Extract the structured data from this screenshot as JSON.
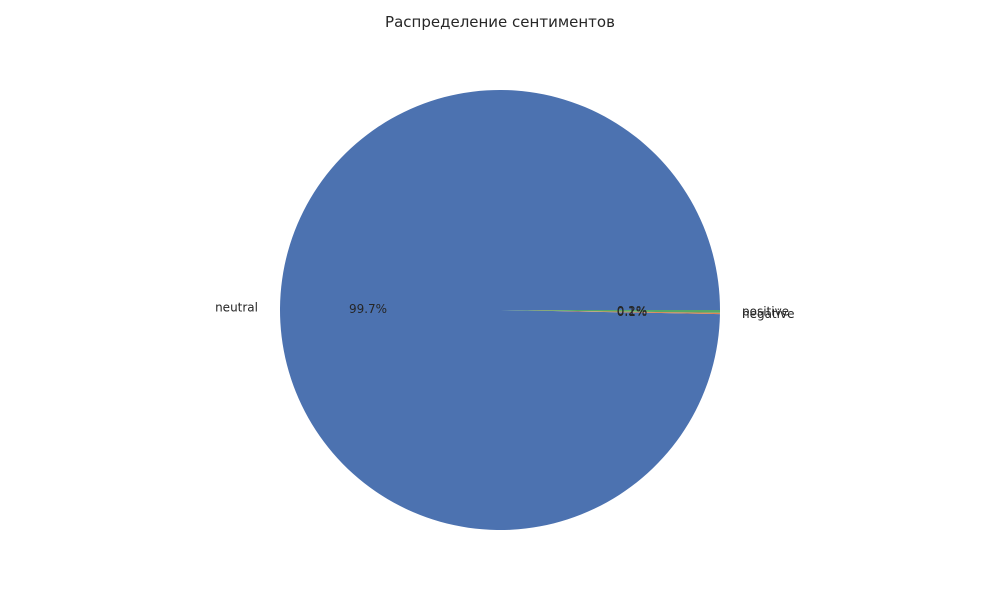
{
  "chart_data": {
    "type": "pie",
    "title": "Распределение сентиментов",
    "slices": [
      {
        "label": "neutral",
        "pct_text": "99.7%",
        "value": 99.7,
        "color": "#4c72b0"
      },
      {
        "label": "negative",
        "pct_text": "0.1%",
        "value": 0.1,
        "color": "#dd8452"
      },
      {
        "label": "positive",
        "pct_text": "0.2%",
        "value": 0.2,
        "color": "#55a868"
      }
    ]
  }
}
